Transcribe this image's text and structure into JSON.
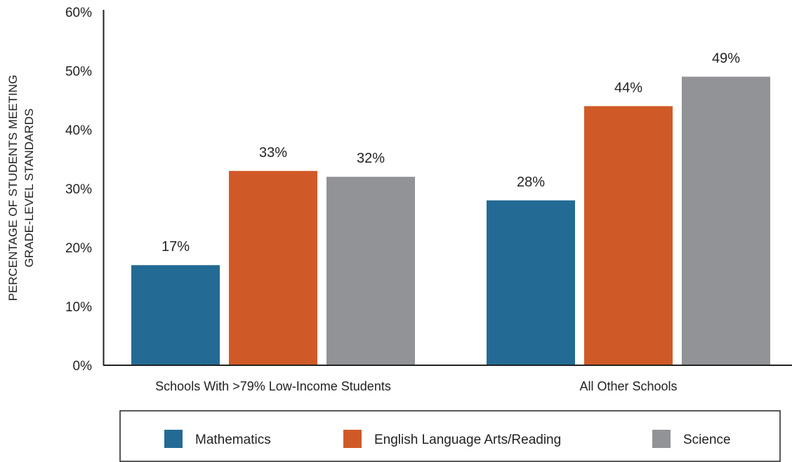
{
  "chart_data": {
    "type": "bar",
    "categories": [
      "Schools With >79% Low-Income Students",
      "All Other Schools"
    ],
    "series": [
      {
        "name": "Mathematics",
        "color": "#236b94",
        "values": [
          17,
          28
        ]
      },
      {
        "name": "English Language Arts/Reading",
        "color": "#d05a27",
        "values": [
          33,
          44
        ]
      },
      {
        "name": "Science",
        "color": "#929396",
        "values": [
          32,
          49
        ]
      }
    ],
    "data_labels": [
      [
        "17%",
        "28%"
      ],
      [
        "33%",
        "44%"
      ],
      [
        "32%",
        "49%"
      ]
    ],
    "ylabel_lines": [
      "PERCENTAGE OF STUDENTS MEETING",
      "GRADE-LEVEL STANDARDS"
    ],
    "ylim": [
      0,
      60
    ],
    "yticks": [
      0,
      10,
      20,
      30,
      40,
      50,
      60
    ],
    "ytick_labels": [
      "0%",
      "10%",
      "20%",
      "30%",
      "40%",
      "50%",
      "60%"
    ],
    "grid": false,
    "legend_position": "bottom"
  }
}
